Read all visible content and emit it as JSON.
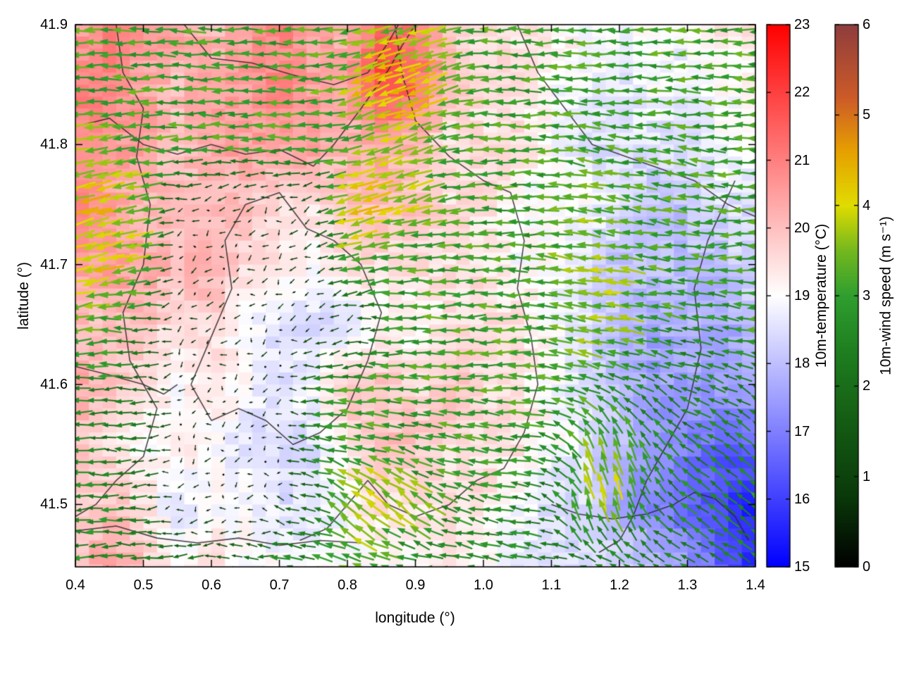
{
  "chart_data": {
    "type": "heatmap",
    "overlays": [
      "quiver",
      "map-outlines"
    ],
    "title": "",
    "xlabel": "longitude (°)",
    "ylabel": "latitude (°)",
    "xlim": [
      0.4,
      1.4
    ],
    "ylim": [
      41.448,
      41.9
    ],
    "xtick_values": [
      0.4,
      0.5,
      0.6,
      0.7,
      0.8,
      0.9,
      1.0,
      1.1,
      1.2,
      1.3,
      1.4
    ],
    "xtick_labels": [
      "0.4",
      "0.5",
      "0.6",
      "0.7",
      "0.8",
      "0.9",
      "1.0",
      "1.1",
      "1.2",
      "1.3",
      "1.4"
    ],
    "ytick_values": [
      41.5,
      41.6,
      41.7,
      41.8,
      41.9
    ],
    "ytick_labels": [
      "41.5",
      "41.6",
      "41.7",
      "41.8",
      "41.9"
    ],
    "grid": false,
    "colorbars": [
      {
        "id": "temperature",
        "label": "10m-temperature (°C)",
        "min": 15,
        "max": 23,
        "tick_values": [
          15,
          16,
          17,
          18,
          19,
          20,
          21,
          22,
          23
        ],
        "tick_labels": [
          "15",
          "16",
          "17",
          "18",
          "19",
          "20",
          "21",
          "22",
          "23"
        ],
        "colormap": [
          [
            15,
            "#0000ff"
          ],
          [
            19,
            "#ffffff"
          ],
          [
            23,
            "#ff0000"
          ]
        ]
      },
      {
        "id": "wind-speed",
        "label": "10m-wind speed (m s⁻¹)",
        "min": 0,
        "max": 6,
        "tick_values": [
          0,
          1,
          2,
          3,
          4,
          5,
          6
        ],
        "tick_labels": [
          "0",
          "1",
          "2",
          "3",
          "4",
          "5",
          "6"
        ],
        "colormap": [
          [
            0,
            "#000000"
          ],
          [
            0.8,
            "#0a3a0a"
          ],
          [
            1.6,
            "#145c14"
          ],
          [
            2.4,
            "#1f7f1f"
          ],
          [
            3.0,
            "#2f9e2f"
          ],
          [
            3.5,
            "#74b81e"
          ],
          [
            4.0,
            "#e0dc00"
          ],
          [
            4.6,
            "#e6a000"
          ],
          [
            5.2,
            "#cc5a28"
          ],
          [
            6,
            "#8f3d3d"
          ]
        ]
      }
    ],
    "temperature_field": {
      "units": "°C",
      "x0": 0.4,
      "x1": 1.4,
      "y_top": 41.9,
      "y_bottom": 41.45,
      "rows_top_to_bottom": true,
      "values": [
        [
          20.5,
          21,
          20.5,
          20.5,
          20,
          20.5,
          21,
          20.5,
          20,
          21.5,
          21,
          20,
          19.5,
          19.5,
          19.5,
          19,
          19,
          19,
          19,
          19.5,
          19.5
        ],
        [
          21,
          21,
          20.5,
          20,
          20.5,
          20.5,
          21,
          20.5,
          20.5,
          22,
          21.5,
          20,
          19.5,
          19.5,
          19,
          19,
          18.5,
          19,
          18.5,
          19,
          19
        ],
        [
          21,
          20.5,
          20.5,
          20,
          20.5,
          20.5,
          20.5,
          20.5,
          20,
          20.5,
          20,
          19.5,
          19.5,
          19.5,
          19,
          18.5,
          18.5,
          18.5,
          18.5,
          19,
          19
        ],
        [
          21,
          20.5,
          20,
          20,
          20,
          20,
          19.5,
          19.5,
          20,
          20,
          20,
          19.5,
          19.5,
          19,
          19,
          19,
          18.5,
          18,
          18,
          18.5,
          18.5
        ],
        [
          20.5,
          20.5,
          20.5,
          20,
          20.5,
          19.5,
          19.5,
          19,
          19.5,
          19.5,
          19.5,
          19.5,
          19.5,
          19,
          19,
          18.5,
          18,
          18,
          18,
          18,
          18.5
        ],
        [
          20,
          20,
          20,
          19.5,
          19.5,
          19,
          18.5,
          18.5,
          18.5,
          19,
          19,
          19.5,
          19.5,
          19.5,
          19,
          18.5,
          18,
          17.5,
          18,
          17.5,
          18
        ],
        [
          20.5,
          20,
          19.5,
          19,
          19.5,
          19,
          18.5,
          19,
          20,
          20,
          19.5,
          20,
          19.5,
          19.5,
          19,
          18.5,
          18,
          17.5,
          17.5,
          17.5,
          17.5
        ],
        [
          20,
          19.5,
          19,
          19.5,
          19,
          18.5,
          18.5,
          18.5,
          19.5,
          20,
          20,
          19.5,
          19.5,
          19.5,
          19,
          18.5,
          18,
          17.5,
          17,
          16.5,
          16.5
        ],
        [
          19.5,
          20,
          19.5,
          18.5,
          19,
          19,
          18.5,
          18.5,
          19,
          19.5,
          19.5,
          19.5,
          19.5,
          19,
          18.5,
          18.5,
          17.5,
          17,
          16.5,
          16,
          15.5
        ],
        [
          20,
          20.5,
          20,
          19,
          19.5,
          19,
          19,
          19,
          19,
          19,
          19,
          19.5,
          19,
          18.5,
          18.5,
          18.5,
          18.5,
          18,
          17.5,
          16.5,
          15.5
        ]
      ]
    },
    "wind_field": {
      "units": "m s⁻¹",
      "x0": 0.4,
      "x1": 1.4,
      "y_top": 41.9,
      "y_bottom": 41.45,
      "rows_top_to_bottom": true,
      "u": [
        [
          -3,
          -3,
          -3,
          -3,
          -3,
          -3,
          -3,
          -3,
          -3,
          -3.5,
          -3.5,
          -3,
          -3,
          -3,
          -3,
          -3,
          -3,
          -3,
          -3,
          -3,
          -3
        ],
        [
          -3,
          -3,
          -3,
          -3,
          -3,
          -3,
          -3,
          -3,
          -3.5,
          -4,
          -4,
          -3.5,
          -3,
          -3,
          -3,
          -3,
          -3,
          -3,
          -3,
          -3,
          -3
        ],
        [
          -3.5,
          -3.5,
          -3,
          -3,
          -3,
          -3,
          -3,
          -3,
          -3,
          -3.5,
          -3.5,
          -3,
          -3,
          -3,
          -3,
          -3,
          -3,
          -3,
          -3,
          -3,
          -3
        ],
        [
          -4,
          -4,
          -3.5,
          -1,
          -0.5,
          -0.5,
          -0.5,
          -1,
          -4,
          -4,
          -3.5,
          -3,
          -3,
          -3,
          -3,
          -3.5,
          -3,
          -3,
          -3,
          -3,
          -3
        ],
        [
          -4,
          -4,
          -3.5,
          -0.5,
          -0.5,
          -0.5,
          -0.5,
          -0.5,
          -3,
          -3,
          -3,
          -3,
          -3,
          -3,
          -3,
          -3.5,
          -3.5,
          -3,
          -3,
          -3,
          -3
        ],
        [
          -3.5,
          -3,
          -2.5,
          -0.5,
          -0.5,
          -0.3,
          -0.3,
          -0.5,
          -0.5,
          -2.5,
          -3,
          -3,
          -3,
          -3,
          -3,
          -3.5,
          -3.5,
          -3,
          -2.5,
          -2.5,
          -3
        ],
        [
          -2.5,
          -2.5,
          -2,
          -0.5,
          -0.3,
          -0.3,
          -0.3,
          -2.5,
          -3,
          -3,
          -3,
          -3,
          -3,
          -3,
          -3,
          -3,
          -2.5,
          -2,
          -2,
          -2,
          -2
        ],
        [
          -2.5,
          -2,
          -2,
          -0.3,
          -0.3,
          -0.3,
          -0.3,
          -2.5,
          -3,
          -3,
          -2.5,
          -3,
          -3,
          -3,
          -2.5,
          -1.5,
          -1,
          -1.5,
          -2,
          -2,
          -2
        ],
        [
          -2.5,
          -2.5,
          -2,
          -0.3,
          -0.3,
          -0.3,
          -1,
          -2,
          -3,
          -3,
          -3,
          -2.5,
          -2.5,
          -2.5,
          -2,
          -1,
          -1,
          -1.5,
          -2,
          -2,
          -2
        ],
        [
          -2.5,
          -2.5,
          -2.5,
          -2,
          -2,
          -2,
          -2.5,
          -2.5,
          -3,
          -3,
          -2.5,
          -2.5,
          -2.5,
          -2.5,
          -2,
          -2,
          -2,
          -2,
          -2,
          -2,
          -2
        ]
      ],
      "v": [
        [
          0,
          0,
          0,
          0,
          0,
          0,
          0,
          0,
          -0.5,
          -1,
          -1,
          -0.5,
          0,
          0,
          0,
          0,
          0,
          0,
          0,
          0,
          0
        ],
        [
          0,
          0,
          0,
          0,
          0,
          0,
          0,
          0,
          -1,
          -1.5,
          -1.5,
          -1,
          0,
          0,
          0,
          0,
          0,
          0,
          0,
          0,
          0
        ],
        [
          -0.5,
          -0.5,
          0,
          0,
          0,
          0,
          0,
          0,
          -0.5,
          -1,
          -1,
          -0.5,
          0,
          0,
          0,
          0.5,
          0.5,
          0.5,
          0.5,
          0,
          0
        ],
        [
          -1,
          -1,
          -0.5,
          -0.3,
          -0.3,
          -0.3,
          -0.3,
          -0.5,
          -1,
          -1,
          -1,
          -0.5,
          0,
          0,
          0,
          0.5,
          0.5,
          0.5,
          0.5,
          0,
          0
        ],
        [
          -1,
          -1,
          -0.5,
          -0.3,
          -0.3,
          -0.3,
          -0.3,
          -0.3,
          -0.5,
          -0.5,
          0,
          0,
          0,
          0,
          0.5,
          0.5,
          0.5,
          0.5,
          0.5,
          0,
          0
        ],
        [
          -0.5,
          0,
          0,
          -0.3,
          -0.3,
          -0.2,
          -0.2,
          -0.3,
          -0.3,
          0,
          0,
          0,
          0,
          0,
          0.5,
          0.5,
          0.5,
          0.5,
          0.5,
          0.5,
          0
        ],
        [
          0,
          0,
          0,
          -0.3,
          -0.2,
          -0.2,
          -0.2,
          0,
          0,
          0,
          0,
          0,
          0,
          0,
          0.5,
          1,
          1,
          1,
          1,
          1,
          1
        ],
        [
          0,
          0,
          0,
          -0.2,
          -0.2,
          -0.2,
          -0.2,
          0.5,
          0.5,
          0.5,
          0.5,
          0.5,
          0.5,
          0.5,
          1,
          3,
          3.5,
          2,
          1.5,
          1.5,
          1.5
        ],
        [
          0,
          0,
          0,
          -0.2,
          -0.2,
          -0.2,
          0.3,
          0.5,
          2.5,
          2.5,
          2.5,
          1,
          0.5,
          0.5,
          1,
          3.5,
          3.5,
          2,
          1.5,
          1.5,
          1.5
        ],
        [
          0,
          0,
          0,
          0,
          0,
          0,
          0.3,
          0.5,
          1,
          1,
          0.5,
          0.5,
          0.5,
          0.5,
          0.5,
          1,
          1,
          1,
          1,
          1,
          1
        ]
      ]
    },
    "map_outlines": [
      [
        [
          0.4,
          41.815
        ],
        [
          0.45,
          41.822
        ],
        [
          0.5,
          41.8
        ],
        [
          0.55,
          41.792
        ],
        [
          0.6,
          41.8
        ],
        [
          0.65,
          41.792
        ],
        [
          0.7,
          41.796
        ],
        [
          0.75,
          41.782
        ],
        [
          0.78,
          41.8
        ],
        [
          0.82,
          41.83
        ],
        [
          0.86,
          41.862
        ],
        [
          0.88,
          41.882
        ],
        [
          0.9,
          41.9
        ]
      ],
      [
        [
          0.56,
          41.9
        ],
        [
          0.6,
          41.872
        ],
        [
          0.66,
          41.868
        ],
        [
          0.72,
          41.858
        ],
        [
          0.78,
          41.85
        ],
        [
          0.83,
          41.86
        ],
        [
          0.86,
          41.885
        ],
        [
          0.875,
          41.9
        ]
      ],
      [
        [
          0.46,
          41.9
        ],
        [
          0.47,
          41.86
        ],
        [
          0.5,
          41.83
        ],
        [
          0.49,
          41.79
        ],
        [
          0.51,
          41.75
        ],
        [
          0.5,
          41.7
        ],
        [
          0.47,
          41.66
        ],
        [
          0.48,
          41.62
        ],
        [
          0.52,
          41.58
        ],
        [
          0.5,
          41.54
        ],
        [
          0.46,
          41.52
        ],
        [
          0.43,
          41.5
        ],
        [
          0.4,
          41.49
        ]
      ],
      [
        [
          0.57,
          41.6
        ],
        [
          0.6,
          41.64
        ],
        [
          0.63,
          41.68
        ],
        [
          0.62,
          41.72
        ],
        [
          0.65,
          41.75
        ],
        [
          0.7,
          41.76
        ],
        [
          0.74,
          41.73
        ],
        [
          0.78,
          41.72
        ],
        [
          0.82,
          41.7
        ],
        [
          0.85,
          41.66
        ],
        [
          0.83,
          41.62
        ],
        [
          0.8,
          41.58
        ],
        [
          0.76,
          41.56
        ],
        [
          0.72,
          41.55
        ],
        [
          0.68,
          41.57
        ],
        [
          0.64,
          41.58
        ],
        [
          0.6,
          41.57
        ],
        [
          0.57,
          41.6
        ]
      ],
      [
        [
          0.87,
          41.9
        ],
        [
          0.88,
          41.86
        ],
        [
          0.9,
          41.82
        ],
        [
          0.95,
          41.79
        ],
        [
          1.0,
          41.77
        ],
        [
          1.04,
          41.76
        ],
        [
          1.06,
          41.72
        ],
        [
          1.05,
          41.68
        ],
        [
          1.07,
          41.64
        ],
        [
          1.08,
          41.6
        ],
        [
          1.06,
          41.56
        ],
        [
          1.03,
          41.53
        ],
        [
          0.99,
          41.52
        ],
        [
          0.95,
          41.5
        ],
        [
          0.9,
          41.49
        ],
        [
          0.86,
          41.5
        ],
        [
          0.83,
          41.52
        ],
        [
          0.8,
          41.5
        ],
        [
          0.77,
          41.48
        ],
        [
          0.73,
          41.47
        ]
      ],
      [
        [
          1.37,
          41.77
        ],
        [
          1.33,
          41.72
        ],
        [
          1.31,
          41.68
        ],
        [
          1.32,
          41.63
        ],
        [
          1.3,
          41.58
        ],
        [
          1.27,
          41.55
        ],
        [
          1.24,
          41.52
        ],
        [
          1.22,
          41.49
        ],
        [
          1.2,
          41.47
        ],
        [
          1.17,
          41.46
        ]
      ],
      [
        [
          1.05,
          41.9
        ],
        [
          1.08,
          41.86
        ],
        [
          1.12,
          41.83
        ],
        [
          1.16,
          41.8
        ],
        [
          1.21,
          41.79
        ],
        [
          1.26,
          41.78
        ],
        [
          1.31,
          41.77
        ],
        [
          1.36,
          41.75
        ],
        [
          1.4,
          41.74
        ]
      ],
      [
        [
          0.4,
          41.478
        ],
        [
          0.46,
          41.482
        ],
        [
          0.52,
          41.472
        ],
        [
          0.58,
          41.468
        ],
        [
          0.64,
          41.472
        ],
        [
          0.7,
          41.466
        ],
        [
          0.76,
          41.47
        ],
        [
          0.82,
          41.468
        ]
      ],
      [
        [
          0.4,
          41.615
        ],
        [
          0.45,
          41.608
        ],
        [
          0.5,
          41.6
        ],
        [
          0.53,
          41.592
        ],
        [
          0.55,
          41.6
        ]
      ],
      [
        [
          1.1,
          41.5
        ],
        [
          1.14,
          41.492
        ],
        [
          1.19,
          41.488
        ],
        [
          1.24,
          41.492
        ],
        [
          1.28,
          41.5
        ],
        [
          1.31,
          41.51
        ],
        [
          1.34,
          41.505
        ],
        [
          1.37,
          41.49
        ],
        [
          1.39,
          41.47
        ]
      ]
    ]
  }
}
